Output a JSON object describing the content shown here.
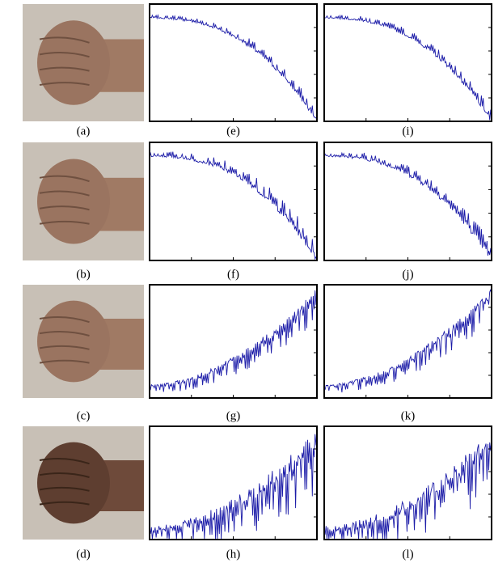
{
  "figure": {
    "rows": [
      [
        "(a)",
        "(e)",
        "(i)"
      ],
      [
        "(b)",
        "(f)",
        "(j)"
      ],
      [
        "(c)",
        "(g)",
        "(k)"
      ],
      [
        "(d)",
        "(h)",
        "(l)"
      ]
    ]
  }
}
